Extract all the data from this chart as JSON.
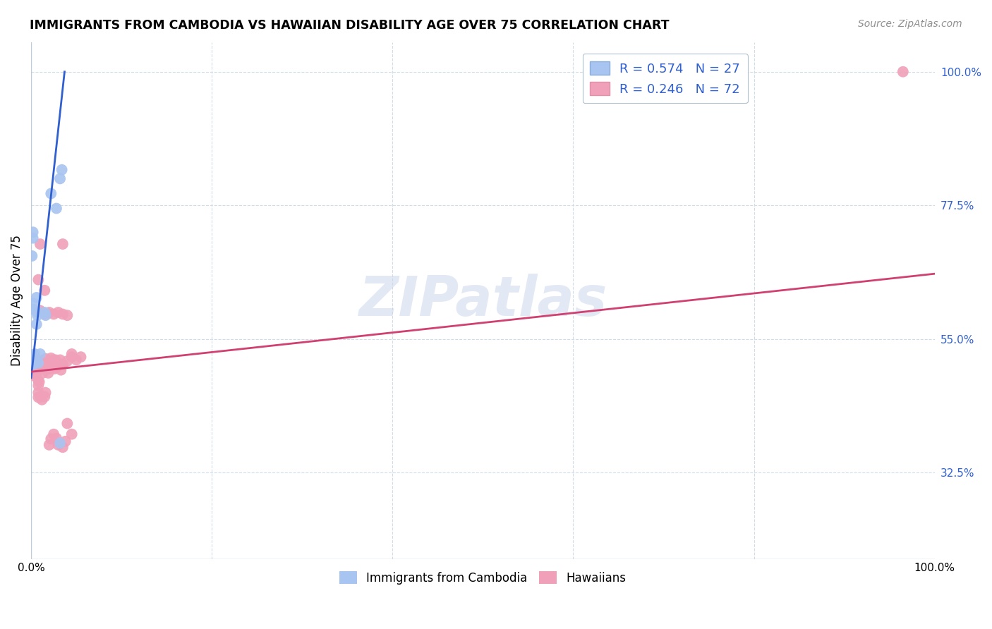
{
  "title": "IMMIGRANTS FROM CAMBODIA VS HAWAIIAN DISABILITY AGE OVER 75 CORRELATION CHART",
  "source": "Source: ZipAtlas.com",
  "ylabel": "Disability Age Over 75",
  "legend_bottom": [
    "Immigrants from Cambodia",
    "Hawaiians"
  ],
  "blue_color": "#a8c4f0",
  "pink_color": "#f0a0b8",
  "trend_blue": "#3060d0",
  "trend_pink": "#d04070",
  "watermark": "ZIPatlas",
  "xlim": [
    0.0,
    100.0
  ],
  "ylim": [
    18.0,
    105.0
  ],
  "ytick_positions": [
    32.5,
    55.0,
    77.5,
    100.0
  ],
  "ytick_labels": [
    "32.5%",
    "55.0%",
    "77.5%",
    "100.0%"
  ],
  "xtick_positions": [
    0.0,
    100.0
  ],
  "xtick_labels": [
    "0.0%",
    "100.0%"
  ],
  "grid_yticks": [
    32.5,
    55.0,
    77.5,
    100.0
  ],
  "grid_xticks": [
    20.0,
    40.0,
    60.0,
    80.0
  ],
  "figsize": [
    14.06,
    8.92
  ],
  "dpi": 100,
  "blue_x": [
    0.1,
    0.2,
    0.3,
    0.4,
    0.5,
    0.1,
    0.2,
    0.3,
    0.4,
    0.6,
    0.5,
    0.7,
    0.6,
    0.8,
    1.0,
    1.5,
    1.6,
    2.2,
    2.8,
    3.4,
    3.2,
    3.2,
    0.1,
    0.2,
    0.3,
    0.5,
    0.7
  ],
  "blue_y": [
    51.5,
    51.0,
    50.8,
    52.2,
    51.8,
    69.0,
    73.0,
    60.0,
    52.5,
    62.0,
    51.5,
    59.5,
    57.5,
    51.0,
    52.5,
    59.5,
    59.0,
    79.5,
    77.0,
    83.5,
    82.0,
    37.5,
    51.5,
    72.0,
    61.0,
    51.2,
    59.0
  ],
  "pink_x": [
    0.1,
    0.1,
    0.2,
    0.2,
    0.3,
    0.3,
    0.4,
    0.4,
    0.5,
    0.5,
    0.6,
    0.6,
    0.7,
    0.7,
    0.8,
    0.8,
    0.9,
    1.0,
    1.2,
    1.2,
    1.3,
    1.5,
    1.6,
    1.7,
    1.8,
    1.9,
    2.0,
    2.1,
    2.2,
    2.3,
    2.4,
    2.5,
    2.6,
    2.7,
    2.8,
    3.0,
    3.2,
    3.3,
    3.5,
    4.0,
    4.5,
    5.0,
    5.5,
    1.0,
    1.5,
    1.8,
    2.0,
    2.5,
    3.0,
    3.5,
    4.0,
    0.8,
    0.8,
    1.0,
    1.2,
    1.5,
    1.6,
    2.0,
    2.2,
    2.5,
    2.8,
    3.0,
    3.5,
    3.8,
    4.0,
    4.5,
    0.8,
    1.0,
    1.5,
    3.5,
    4.5,
    96.5
  ],
  "pink_y": [
    51.0,
    49.5,
    51.0,
    50.0,
    51.0,
    49.4,
    50.5,
    48.8,
    50.0,
    49.2,
    50.2,
    49.3,
    51.5,
    50.8,
    48.0,
    47.2,
    47.8,
    50.0,
    50.5,
    51.2,
    49.3,
    50.0,
    51.7,
    50.3,
    50.5,
    49.3,
    50.0,
    50.5,
    51.8,
    50.3,
    51.0,
    51.5,
    50.0,
    51.5,
    50.2,
    50.8,
    51.5,
    49.8,
    50.8,
    51.3,
    52.0,
    51.5,
    52.0,
    59.8,
    59.2,
    59.3,
    59.5,
    59.2,
    59.5,
    59.2,
    59.0,
    46.0,
    45.2,
    45.3,
    44.8,
    45.3,
    46.0,
    37.2,
    38.2,
    39.0,
    38.3,
    37.2,
    36.8,
    37.8,
    40.8,
    39.0,
    65.0,
    71.0,
    63.2,
    71.0,
    52.5,
    100.0
  ],
  "blue_trend_x0": 0.0,
  "blue_trend_x1": 3.7,
  "blue_trend_y0": 48.5,
  "blue_trend_y1": 100.0,
  "pink_trend_x0": 0.0,
  "pink_trend_x1": 100.0,
  "pink_trend_y0": 49.5,
  "pink_trend_y1": 66.0
}
